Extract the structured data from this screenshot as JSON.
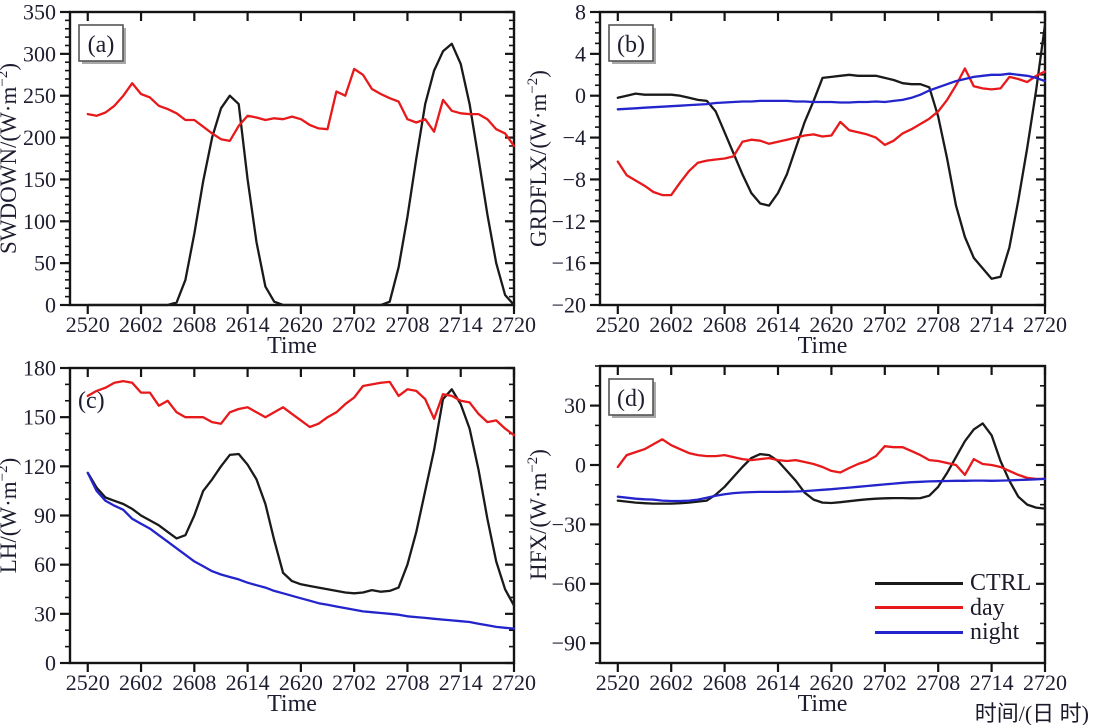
{
  "figure": {
    "background": "#ffffff"
  },
  "colors": {
    "ctrl": "#1a1a1a",
    "day": "#e7191b",
    "night": "#2424cc",
    "axis": "#141414",
    "tick_label": "#1d1d30"
  },
  "legend": {
    "position": "bottom-right-of-panel-d",
    "items": [
      {
        "label": "CTRL",
        "color": "#1a1a1a"
      },
      {
        "label": "day",
        "color": "#e7191b"
      },
      {
        "label": "night",
        "color": "#2424cc"
      }
    ]
  },
  "x_axis": {
    "label": "Time",
    "label_cn": "时间/(日 时)",
    "tick_labels": [
      "2520",
      "2602",
      "2608",
      "2614",
      "2620",
      "2702",
      "2708",
      "2714",
      "2720"
    ],
    "tick_hours": [
      0,
      6,
      12,
      18,
      24,
      30,
      36,
      42,
      48
    ],
    "range_hours": [
      -2,
      48
    ],
    "minor_ticks": false
  },
  "chart_data": [
    {
      "type": "line",
      "panel": "(a)",
      "boxed_label": true,
      "ylabel": "SWDOWN/(W·m⁻²)",
      "ylim": [
        0,
        350
      ],
      "ytick_major": 50,
      "ytick_minor": 10,
      "series": [
        {
          "name": "CTRL",
          "color": "#1a1a1a",
          "values": [
            0,
            0,
            0,
            0,
            0,
            0,
            0,
            0,
            0,
            0,
            3,
            30,
            85,
            148,
            200,
            235,
            250,
            240,
            150,
            75,
            22,
            4,
            0,
            0,
            0,
            0,
            0,
            0,
            0,
            0,
            0,
            0,
            0,
            0,
            4,
            45,
            105,
            175,
            240,
            280,
            303,
            312,
            288,
            240,
            175,
            108,
            50,
            12,
            0
          ]
        },
        {
          "name": "day",
          "color": "#e7191b",
          "values": [
            228,
            226,
            230,
            238,
            250,
            265,
            252,
            248,
            238,
            234,
            229,
            221,
            221,
            213,
            205,
            198,
            196,
            214,
            226,
            224,
            221,
            223,
            222,
            225,
            222,
            215,
            211,
            210,
            255,
            250,
            282,
            275,
            258,
            252,
            247,
            243,
            222,
            218,
            222,
            207,
            245,
            232,
            229,
            228,
            228,
            222,
            210,
            205,
            190
          ]
        }
      ]
    },
    {
      "type": "line",
      "panel": "(b)",
      "boxed_label": true,
      "ylabel": "GRDFLX/(W·m⁻²)",
      "ylim": [
        -20,
        8
      ],
      "ytick_major": 4,
      "ytick_minor": 1,
      "series": [
        {
          "name": "CTRL",
          "color": "#1a1a1a",
          "values": [
            -0.2,
            0,
            0.2,
            0.1,
            0.1,
            0.1,
            0.1,
            0,
            -0.2,
            -0.4,
            -0.5,
            -1.5,
            -3.5,
            -5.5,
            -7.5,
            -9.3,
            -10.3,
            -10.5,
            -9.3,
            -7.5,
            -5,
            -2.5,
            -0.5,
            1.7,
            1.8,
            1.9,
            2,
            1.9,
            1.9,
            1.9,
            1.7,
            1.5,
            1.2,
            1.1,
            1.1,
            0.8,
            -2,
            -6,
            -10.5,
            -13.5,
            -15.5,
            -16.5,
            -17.5,
            -17.3,
            -14.5,
            -10,
            -5,
            0.5,
            6.8
          ]
        },
        {
          "name": "day",
          "color": "#e7191b",
          "values": [
            -6.3,
            -7.6,
            -8.1,
            -8.6,
            -9.2,
            -9.5,
            -9.5,
            -8.3,
            -7.2,
            -6.4,
            -6.2,
            -6.1,
            -6,
            -5.8,
            -4.4,
            -4.2,
            -4.3,
            -4.6,
            -4.4,
            -4.2,
            -4,
            -3.8,
            -3.7,
            -3.9,
            -3.8,
            -2.5,
            -3.3,
            -3.5,
            -3.7,
            -4,
            -4.7,
            -4.3,
            -3.6,
            -3.2,
            -2.7,
            -2.2,
            -1.5,
            -0.4,
            1,
            2.6,
            0.9,
            0.7,
            0.6,
            0.7,
            1.8,
            1.6,
            1.3,
            1.9,
            2.3
          ]
        },
        {
          "name": "night",
          "color": "#2424cc",
          "values": [
            -1.3,
            -1.25,
            -1.2,
            -1.15,
            -1.1,
            -1.05,
            -1,
            -0.95,
            -0.9,
            -0.85,
            -0.8,
            -0.7,
            -0.65,
            -0.6,
            -0.55,
            -0.55,
            -0.5,
            -0.5,
            -0.5,
            -0.5,
            -0.55,
            -0.55,
            -0.6,
            -0.6,
            -0.6,
            -0.65,
            -0.65,
            -0.6,
            -0.6,
            -0.55,
            -0.6,
            -0.5,
            -0.4,
            -0.2,
            0.1,
            0.5,
            0.8,
            1.1,
            1.4,
            1.6,
            1.8,
            1.9,
            2,
            2,
            2.1,
            2,
            1.9,
            1.7,
            1.4
          ]
        }
      ]
    },
    {
      "type": "line",
      "panel": "(c)",
      "boxed_label": false,
      "ylabel": "LH/(W·m⁻²)",
      "ylim": [
        0,
        180
      ],
      "ytick_major": 30,
      "ytick_minor": 10,
      "series": [
        {
          "name": "CTRL",
          "color": "#1a1a1a",
          "values": [
            116,
            107,
            101,
            99,
            97,
            94,
            90,
            87,
            84,
            80,
            76,
            78,
            90,
            105,
            112,
            120,
            127,
            127.5,
            121,
            112,
            97,
            75,
            55,
            50,
            48,
            47,
            46,
            45,
            44,
            43,
            42.5,
            43,
            44.5,
            43.5,
            44,
            46,
            60,
            80,
            105,
            130,
            161,
            167,
            158,
            143,
            118,
            88,
            62,
            45,
            35
          ]
        },
        {
          "name": "day",
          "color": "#e7191b",
          "values": [
            163,
            166,
            168,
            171,
            172,
            171,
            165,
            165,
            157,
            160,
            153,
            150,
            150,
            150,
            147,
            146,
            153,
            155,
            156,
            153,
            150,
            153,
            156,
            152,
            148,
            144,
            146,
            150,
            153,
            158,
            162,
            169,
            170,
            171,
            171.5,
            163,
            167,
            166,
            161,
            149,
            164,
            163,
            160,
            159,
            152,
            147,
            148,
            143,
            139
          ]
        },
        {
          "name": "night",
          "color": "#2424cc",
          "values": [
            116,
            105,
            99,
            96,
            93.5,
            88,
            85,
            82,
            78,
            74,
            70,
            66,
            62,
            59,
            56,
            54,
            52.5,
            51,
            49,
            47.5,
            46,
            44,
            42.5,
            41,
            39.5,
            38,
            36.5,
            35.5,
            34.5,
            33.5,
            32.5,
            31.5,
            31,
            30.5,
            30,
            29.5,
            28.5,
            28,
            27.5,
            27,
            26.5,
            26,
            25.5,
            25,
            24,
            23,
            22,
            21.5,
            21
          ]
        }
      ]
    },
    {
      "type": "line",
      "panel": "(d)",
      "boxed_label": true,
      "ylabel": "HFX/(W·m⁻²)",
      "ylim": [
        -100,
        50
      ],
      "ytick_major": 30,
      "ytick_minor": 10,
      "series": [
        {
          "name": "CTRL",
          "color": "#1a1a1a",
          "values": [
            -18,
            -18.5,
            -19,
            -19.3,
            -19.5,
            -19.5,
            -19.5,
            -19.3,
            -19,
            -18.5,
            -18,
            -15,
            -11,
            -6,
            -1,
            3.5,
            5.5,
            5,
            2,
            -3,
            -8,
            -14,
            -17.5,
            -19,
            -19.2,
            -18.8,
            -18.3,
            -17.8,
            -17.3,
            -17,
            -16.8,
            -16.7,
            -16.7,
            -16.8,
            -16.7,
            -15.5,
            -11,
            -4,
            4,
            12,
            18,
            21,
            15,
            2,
            -8,
            -16,
            -20,
            -21.5,
            -22
          ]
        },
        {
          "name": "day",
          "color": "#e7191b",
          "values": [
            -1,
            5,
            6.5,
            8,
            10.5,
            13,
            10,
            8,
            6,
            5,
            4.5,
            4.5,
            5,
            4,
            3,
            2.5,
            3,
            3.5,
            2.5,
            2,
            2.5,
            1.5,
            0.5,
            -1,
            -3,
            -3.8,
            -1.5,
            0.5,
            2,
            4.5,
            9.5,
            9,
            9,
            7,
            5,
            2.5,
            2,
            1,
            0,
            -5,
            3,
            0.5,
            0,
            -1,
            -3,
            -5,
            -6.5,
            -7,
            -7
          ]
        },
        {
          "name": "night",
          "color": "#2424cc",
          "values": [
            -16,
            -16.5,
            -17,
            -17.3,
            -17.5,
            -18,
            -18.2,
            -18.2,
            -18,
            -17.5,
            -16.5,
            -15.5,
            -14.8,
            -14.2,
            -13.9,
            -13.7,
            -13.6,
            -13.6,
            -13.6,
            -13.5,
            -13.4,
            -13.2,
            -12.9,
            -12.5,
            -12.2,
            -11.8,
            -11.4,
            -11,
            -10.6,
            -10.2,
            -9.8,
            -9.4,
            -9,
            -8.7,
            -8.5,
            -8.3,
            -8.2,
            -8.1,
            -8,
            -8,
            -7.9,
            -7.9,
            -8,
            -7.9,
            -7.8,
            -7.6,
            -7.4,
            -7.2,
            -7
          ]
        }
      ]
    }
  ]
}
